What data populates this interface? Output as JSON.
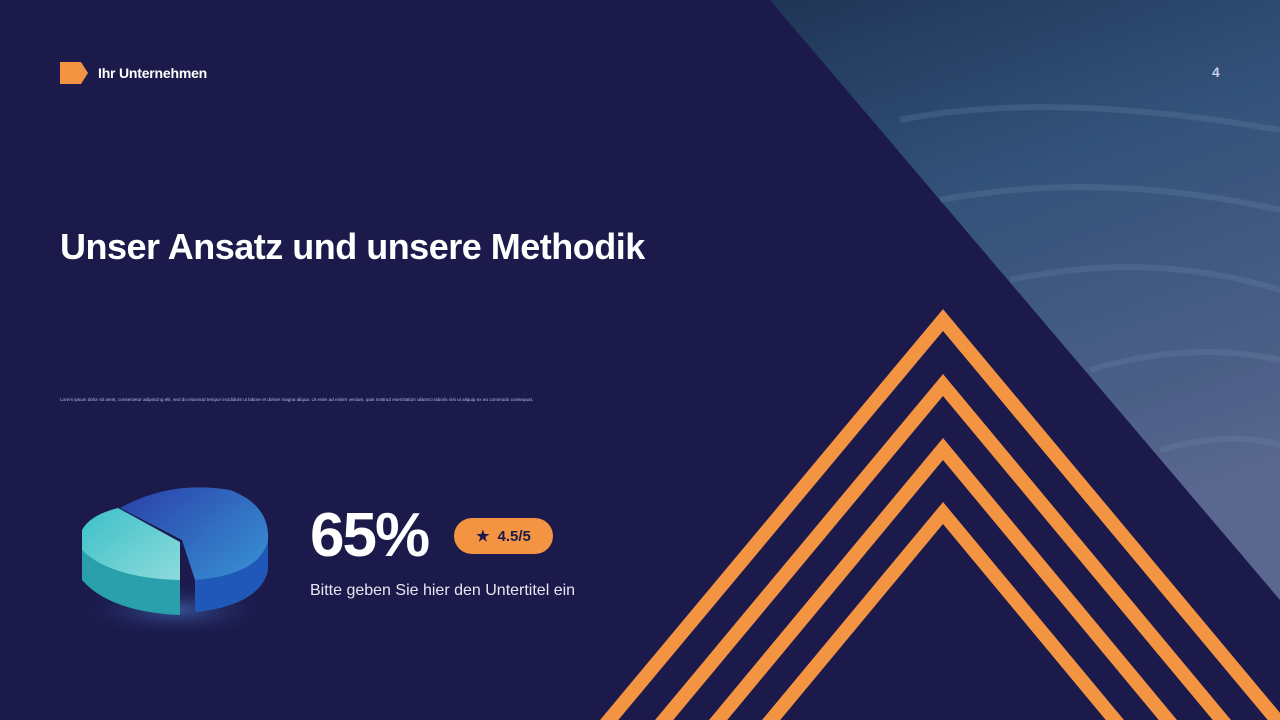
{
  "header": {
    "company": "Ihr Unternehmen",
    "page_number": "4"
  },
  "slide": {
    "title": "Unser Ansatz und unsere Methodik",
    "body": "Lorem ipsum dolor sit amet, consectetur adipiscing elit, sed do eiusmod tempor incididunt ut labore et dolore magna aliqua. Ut enim ad minim veniam, quis nostrud exercitation ullamco laboris nisi ut aliquip ex ea commodo consequat.",
    "stat": {
      "value": "65%",
      "rating": "4.5/5",
      "rating_icon": "star-icon",
      "subtitle": "Bitte geben Sie hier den Untertitel ein"
    }
  },
  "colors": {
    "background": "#1b1a4b",
    "accent": "#f39442"
  }
}
